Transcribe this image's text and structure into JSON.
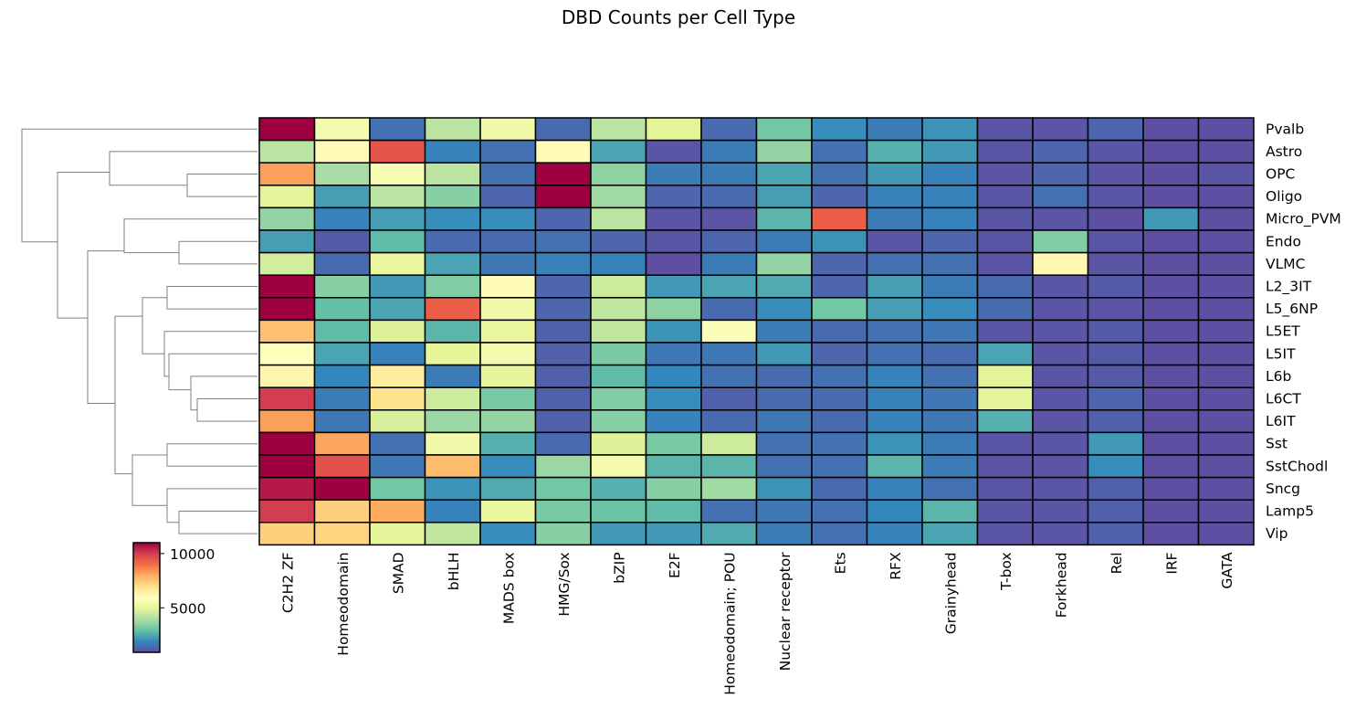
{
  "chart_data": {
    "type": "heatmap",
    "title": "DBD Counts per Cell Type",
    "columns": [
      "C2H2 ZF",
      "Homeodomain",
      "SMAD",
      "bHLH",
      "MADS box",
      "HMG/Sox",
      "bZIP",
      "E2F",
      "Homeodomain; POU",
      "Nuclear receptor",
      "Ets",
      "RFX",
      "Grainyhead",
      "T-box",
      "Forkhead",
      "Rel",
      "IRF",
      "GATA"
    ],
    "rows": [
      "Pvalb",
      "Astro",
      "OPC",
      "Oligo",
      "Micro_PVM",
      "Endo",
      "VLMC",
      "L2_3IT",
      "L5_6NP",
      "L5ET",
      "L5IT",
      "L6b",
      "L6CT",
      "L6IT",
      "Sst",
      "SstChodl",
      "Sncg",
      "Lamp5",
      "Vip"
    ],
    "values": [
      [
        11000,
        5500,
        1500,
        4200,
        5400,
        1400,
        4200,
        4900,
        1400,
        3100,
        2000,
        1700,
        2100,
        1000,
        1000,
        1300,
        900,
        900
      ],
      [
        4200,
        6100,
        9500,
        1800,
        1500,
        6100,
        2400,
        1000,
        1700,
        3600,
        1500,
        2600,
        2200,
        1000,
        1300,
        1000,
        900,
        900
      ],
      [
        8200,
        3900,
        5600,
        4200,
        1500,
        11000,
        3500,
        1700,
        1700,
        2400,
        1500,
        2200,
        1800,
        1000,
        1300,
        1000,
        900,
        1000
      ],
      [
        4900,
        2300,
        4200,
        3400,
        1300,
        11000,
        3800,
        1300,
        1400,
        2300,
        1300,
        1800,
        1800,
        1000,
        1500,
        1000,
        900,
        900
      ],
      [
        3600,
        1800,
        2300,
        2000,
        2000,
        1300,
        4200,
        1000,
        1000,
        2700,
        9300,
        1700,
        1800,
        1000,
        1000,
        900,
        2200,
        900
      ],
      [
        2300,
        1100,
        2800,
        1400,
        1400,
        1500,
        1300,
        1000,
        1300,
        1700,
        2100,
        1000,
        1300,
        1000,
        3300,
        1000,
        900,
        900
      ],
      [
        4600,
        1400,
        5100,
        2400,
        1600,
        1800,
        1800,
        900,
        1700,
        3600,
        1300,
        1500,
        1500,
        1000,
        6200,
        1000,
        900,
        900
      ],
      [
        11000,
        3400,
        2200,
        3300,
        6100,
        1300,
        4500,
        2200,
        2400,
        2500,
        1300,
        2300,
        1700,
        1400,
        1000,
        1100,
        900,
        900
      ],
      [
        11000,
        2900,
        2400,
        9300,
        5400,
        1300,
        4300,
        3500,
        1400,
        2000,
        3100,
        2300,
        2000,
        1400,
        1000,
        1000,
        900,
        900
      ],
      [
        7600,
        2800,
        4800,
        2700,
        5100,
        1200,
        4300,
        2100,
        5800,
        1700,
        1400,
        1500,
        1600,
        1000,
        1000,
        1100,
        900,
        900
      ],
      [
        5900,
        2400,
        1800,
        5000,
        5500,
        1200,
        3200,
        1600,
        1600,
        2200,
        1300,
        1500,
        1400,
        2400,
        1000,
        1100,
        900,
        900
      ],
      [
        6300,
        1900,
        6600,
        1700,
        5000,
        1200,
        2800,
        1900,
        1500,
        1400,
        1500,
        1800,
        1500,
        4900,
        1000,
        1100,
        900,
        900
      ],
      [
        10000,
        1700,
        6900,
        4500,
        3200,
        1200,
        3300,
        2000,
        1200,
        1400,
        1400,
        1800,
        1600,
        4900,
        1000,
        1300,
        900,
        900
      ],
      [
        8200,
        1600,
        4700,
        3700,
        3600,
        1200,
        3400,
        1800,
        1400,
        1600,
        1400,
        1800,
        1600,
        2600,
        1000,
        1200,
        900,
        900
      ],
      [
        11000,
        8100,
        1500,
        5400,
        2600,
        1400,
        4800,
        3200,
        4500,
        1500,
        1500,
        2100,
        1700,
        1000,
        1000,
        2200,
        900,
        900
      ],
      [
        11000,
        9600,
        1600,
        7700,
        2000,
        3700,
        5500,
        2700,
        2700,
        1500,
        1500,
        2700,
        1700,
        1000,
        1000,
        2000,
        900,
        900
      ],
      [
        10600,
        11000,
        3100,
        2100,
        2500,
        3100,
        2600,
        3400,
        3800,
        2100,
        1400,
        1800,
        1500,
        1000,
        1000,
        1200,
        900,
        900
      ],
      [
        10000,
        7300,
        8000,
        1800,
        5100,
        3200,
        3000,
        2800,
        1500,
        1600,
        1500,
        1900,
        2700,
        1000,
        1000,
        1200,
        900,
        900
      ],
      [
        7300,
        7200,
        5000,
        4300,
        2000,
        3400,
        2200,
        2200,
        2500,
        1700,
        1500,
        1800,
        2400,
        1000,
        1000,
        1200,
        900,
        900
      ]
    ],
    "colorbar": {
      "ticks": [
        10000,
        5000
      ],
      "vmin": 900,
      "vmax": 11000,
      "colormap": "Spectral_r"
    },
    "dendrogram": "rows",
    "grid": false
  }
}
